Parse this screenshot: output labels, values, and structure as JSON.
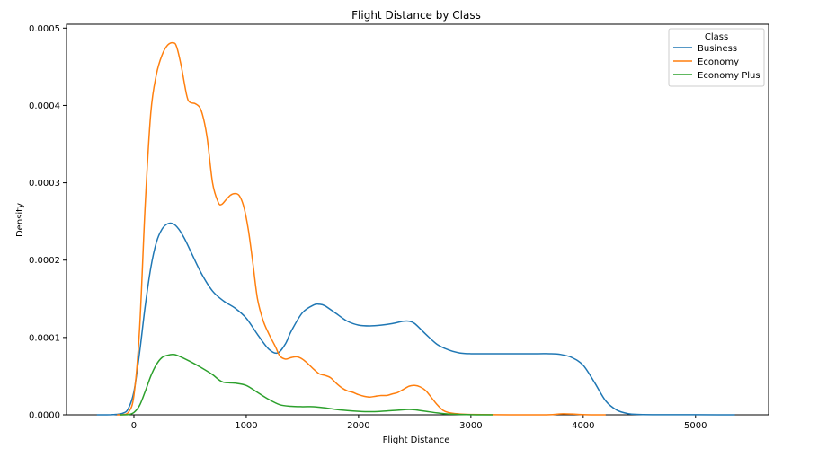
{
  "chart_data": {
    "type": "line",
    "subtype": "kde",
    "title": "Flight Distance by Class",
    "xlabel": "Flight Distance",
    "ylabel": "Density",
    "xlim": [
      -600,
      5650
    ],
    "ylim": [
      0,
      0.000505
    ],
    "x_ticks": [
      0,
      1000,
      2000,
      3000,
      4000,
      5000
    ],
    "x_tick_labels": [
      "0",
      "1000",
      "2000",
      "3000",
      "4000",
      "5000"
    ],
    "y_ticks": [
      0,
      0.0001,
      0.0002,
      0.0003,
      0.0004,
      0.0005
    ],
    "y_tick_labels": [
      "0.0000",
      "0.0001",
      "0.0002",
      "0.0003",
      "0.0004",
      "0.0005"
    ],
    "grid": false,
    "legend": {
      "title": "Class",
      "placement": "top-right"
    },
    "series": [
      {
        "name": "Business",
        "color": "#1f77b4",
        "x": [
          -330,
          -200,
          -100,
          -50,
          0,
          50,
          100,
          150,
          200,
          250,
          300,
          350,
          400,
          450,
          500,
          600,
          700,
          800,
          900,
          1000,
          1100,
          1200,
          1280,
          1350,
          1400,
          1500,
          1600,
          1650,
          1700,
          1800,
          1900,
          2000,
          2100,
          2200,
          2300,
          2400,
          2450,
          2500,
          2600,
          2700,
          2800,
          2900,
          3000,
          3200,
          3400,
          3600,
          3700,
          3800,
          3900,
          4000,
          4100,
          4200,
          4300,
          4400,
          4500,
          4700,
          5000,
          5200,
          5350
        ],
        "y": [
          0,
          2e-07,
          2e-06,
          8e-06,
          3e-05,
          8e-05,
          0.00014,
          0.00019,
          0.000223,
          0.00024,
          0.000247,
          0.000247,
          0.00024,
          0.000228,
          0.000213,
          0.000183,
          0.00016,
          0.000147,
          0.000138,
          0.000125,
          0.000104,
          8.5e-05,
          8e-05,
          9.2e-05,
          0.000108,
          0.000132,
          0.000142,
          0.000143,
          0.000141,
          0.000131,
          0.000121,
          0.000116,
          0.000115,
          0.000116,
          0.000118,
          0.000121,
          0.000121,
          0.000118,
          0.000104,
          9.1e-05,
          8.4e-05,
          8e-05,
          7.9e-05,
          7.9e-05,
          7.9e-05,
          7.9e-05,
          7.9e-05,
          7.8e-05,
          7.4e-05,
          6.4e-05,
          4.2e-05,
          1.8e-05,
          6e-06,
          1.5e-06,
          5e-07,
          2e-07,
          2e-07,
          0,
          0
        ]
      },
      {
        "name": "Economy",
        "color": "#ff7f0e",
        "x": [
          -150,
          -100,
          -50,
          0,
          50,
          100,
          150,
          200,
          250,
          300,
          350,
          380,
          420,
          470,
          500,
          550,
          600,
          650,
          700,
          750,
          780,
          820,
          860,
          900,
          940,
          980,
          1020,
          1060,
          1100,
          1150,
          1200,
          1260,
          1300,
          1350,
          1400,
          1450,
          1500,
          1550,
          1600,
          1650,
          1700,
          1750,
          1800,
          1850,
          1900,
          1950,
          2000,
          2050,
          2100,
          2150,
          2200,
          2250,
          2300,
          2350,
          2400,
          2450,
          2500,
          2550,
          2600,
          2650,
          2700,
          2750,
          2800,
          2900,
          3000,
          3200,
          3500,
          3700,
          3800,
          3900,
          4000,
          4100,
          4200
        ],
        "y": [
          0,
          2e-07,
          3e-06,
          2.5e-05,
          0.00011,
          0.00027,
          0.00039,
          0.00044,
          0.000465,
          0.000478,
          0.000481,
          0.000476,
          0.000452,
          0.000413,
          0.000404,
          0.000402,
          0.000393,
          0.00036,
          0.0003,
          0.000275,
          0.000272,
          0.000278,
          0.000284,
          0.000286,
          0.000283,
          0.000268,
          0.000238,
          0.000195,
          0.00015,
          0.000122,
          0.000105,
          8.8e-05,
          7.6e-05,
          7.2e-05,
          7.4e-05,
          7.5e-05,
          7.2e-05,
          6.6e-05,
          5.9e-05,
          5.3e-05,
          5.1e-05,
          4.8e-05,
          4.1e-05,
          3.5e-05,
          3.1e-05,
          2.9e-05,
          2.6e-05,
          2.4e-05,
          2.3e-05,
          2.4e-05,
          2.5e-05,
          2.5e-05,
          2.7e-05,
          2.9e-05,
          3.3e-05,
          3.7e-05,
          3.8e-05,
          3.6e-05,
          3.1e-05,
          2.2e-05,
          1.3e-05,
          6e-06,
          3e-06,
          1e-06,
          4e-07,
          1e-07,
          0,
          2e-07,
          1.2e-06,
          1e-06,
          3e-07,
          0,
          0
        ]
      },
      {
        "name": "Economy Plus",
        "color": "#2ca02c",
        "x": [
          -120,
          -50,
          0,
          50,
          100,
          150,
          200,
          250,
          300,
          350,
          400,
          500,
          600,
          700,
          750,
          800,
          900,
          1000,
          1100,
          1200,
          1300,
          1400,
          1500,
          1600,
          1700,
          1800,
          1900,
          2000,
          2100,
          2200,
          2300,
          2400,
          2450,
          2500,
          2600,
          2700,
          2800,
          3000,
          3200
        ],
        "y": [
          0,
          3e-07,
          3e-06,
          1.2e-05,
          3e-05,
          5e-05,
          6.5e-05,
          7.4e-05,
          7.7e-05,
          7.8e-05,
          7.6e-05,
          6.9e-05,
          6.1e-05,
          5.2e-05,
          4.6e-05,
          4.2e-05,
          4.1e-05,
          3.8e-05,
          2.9e-05,
          2e-05,
          1.3e-05,
          1.1e-05,
          1.05e-05,
          1.05e-05,
          9e-06,
          7e-06,
          5.5e-06,
          4.5e-06,
          4e-06,
          4.5e-06,
          5.5e-06,
          6.5e-06,
          7e-06,
          6.5e-06,
          4.5e-06,
          2.5e-06,
          1e-06,
          2e-07,
          0
        ]
      }
    ]
  }
}
